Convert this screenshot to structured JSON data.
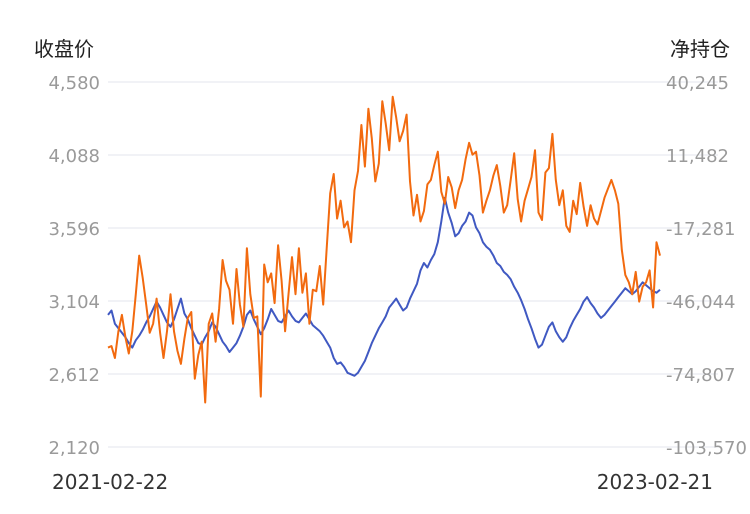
{
  "chart_data": {
    "type": "line",
    "left_axis_label": "收盘价",
    "right_axis_label": "净持仓",
    "x_start_label": "2021-02-22",
    "x_end_label": "2023-02-21",
    "left_ticks": [
      "4,580",
      "4,088",
      "3,596",
      "3,104",
      "2,612",
      "2,120"
    ],
    "right_ticks": [
      "40,245",
      "11,482",
      "-17,281",
      "-46,044",
      "-74,807",
      "-103,570"
    ],
    "left_range": [
      2120,
      4580
    ],
    "right_range": [
      -103570,
      40245
    ],
    "grid": true,
    "series": [
      {
        "color": "#4059c2",
        "axis": "left",
        "values": [
          3010,
          3040,
          2950,
          2920,
          2890,
          2860,
          2820,
          2790,
          2840,
          2870,
          2910,
          2960,
          3000,
          3050,
          3100,
          3060,
          3010,
          2960,
          2930,
          2980,
          3050,
          3120,
          3020,
          2980,
          2920,
          2870,
          2820,
          2810,
          2860,
          2900,
          2960,
          2930,
          2880,
          2830,
          2800,
          2760,
          2790,
          2820,
          2870,
          2930,
          3010,
          3040,
          2980,
          2930,
          2880,
          2920,
          2980,
          3050,
          3010,
          2970,
          2960,
          3000,
          3040,
          3000,
          2970,
          2960,
          2990,
          3020,
          2980,
          2940,
          2920,
          2900,
          2870,
          2830,
          2790,
          2720,
          2680,
          2690,
          2660,
          2620,
          2610,
          2600,
          2620,
          2660,
          2700,
          2760,
          2820,
          2870,
          2920,
          2960,
          3000,
          3060,
          3090,
          3120,
          3080,
          3040,
          3060,
          3120,
          3170,
          3220,
          3310,
          3360,
          3330,
          3380,
          3420,
          3500,
          3640,
          3800,
          3700,
          3630,
          3540,
          3560,
          3610,
          3640,
          3700,
          3680,
          3600,
          3560,
          3500,
          3470,
          3450,
          3410,
          3360,
          3340,
          3300,
          3280,
          3250,
          3200,
          3160,
          3110,
          3050,
          2980,
          2920,
          2850,
          2790,
          2810,
          2870,
          2930,
          2960,
          2900,
          2860,
          2830,
          2860,
          2920,
          2970,
          3010,
          3050,
          3100,
          3130,
          3090,
          3060,
          3020,
          2990,
          3010,
          3040,
          3070,
          3100,
          3130,
          3160,
          3190,
          3170,
          3150,
          3170,
          3200,
          3230,
          3210,
          3190,
          3170,
          3160,
          3180
        ]
      },
      {
        "color": "#f26a0f",
        "axis": "left",
        "values": [
          2790,
          2800,
          2720,
          2900,
          3010,
          2860,
          2750,
          2900,
          3150,
          3410,
          3260,
          3080,
          2890,
          2950,
          3120,
          2890,
          2720,
          2900,
          3150,
          2900,
          2770,
          2680,
          2850,
          2990,
          3030,
          2580,
          2740,
          2830,
          2420,
          2950,
          3020,
          2830,
          3050,
          3380,
          3240,
          3180,
          2950,
          3320,
          3080,
          2930,
          3460,
          3150,
          2990,
          3000,
          2460,
          3350,
          3230,
          3290,
          3090,
          3480,
          3240,
          2900,
          3150,
          3400,
          3150,
          3460,
          3160,
          3290,
          2950,
          3180,
          3170,
          3340,
          3080,
          3460,
          3830,
          3960,
          3660,
          3780,
          3600,
          3640,
          3500,
          3850,
          3980,
          4290,
          4010,
          4400,
          4200,
          3910,
          4030,
          4450,
          4300,
          4120,
          4480,
          4340,
          4180,
          4250,
          4360,
          3910,
          3680,
          3820,
          3640,
          3710,
          3890,
          3920,
          4020,
          4110,
          3840,
          3760,
          3940,
          3870,
          3730,
          3850,
          3920,
          4060,
          4170,
          4090,
          4110,
          3950,
          3700,
          3780,
          3850,
          3950,
          4020,
          3880,
          3700,
          3750,
          3920,
          4100,
          3790,
          3640,
          3780,
          3860,
          3940,
          4120,
          3700,
          3650,
          3970,
          4000,
          4230,
          3920,
          3750,
          3850,
          3610,
          3570,
          3780,
          3690,
          3900,
          3740,
          3610,
          3750,
          3660,
          3620,
          3710,
          3800,
          3860,
          3920,
          3850,
          3760,
          3450,
          3280,
          3230,
          3150,
          3300,
          3100,
          3200,
          3230,
          3310,
          3060,
          3500,
          3410
        ]
      }
    ]
  }
}
